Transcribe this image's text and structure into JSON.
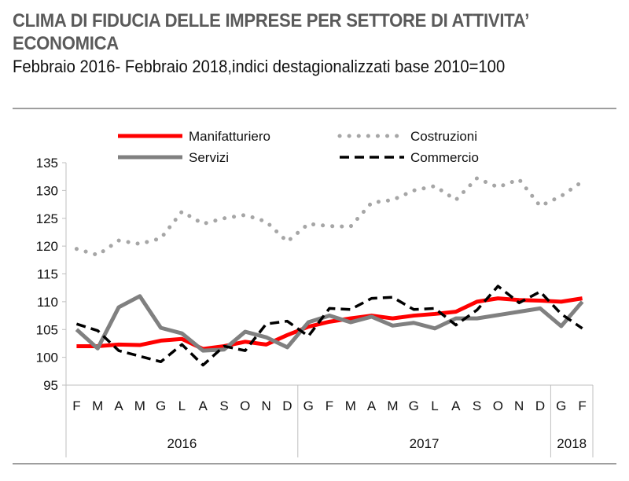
{
  "chart_data": {
    "type": "line",
    "title": "CLIMA DI FIDUCIA DELLE IMPRESE PER SETTORE DI ATTIVITA’ ECONOMICA",
    "subtitle": "Febbraio 2016- Febbraio 2018,indici destagionalizzati base 2010=100",
    "x": [
      "F",
      "M",
      "A",
      "M",
      "G",
      "L",
      "A",
      "S",
      "O",
      "N",
      "D",
      "G",
      "F",
      "M",
      "A",
      "M",
      "G",
      "L",
      "A",
      "S",
      "O",
      "N",
      "D",
      "G",
      "F"
    ],
    "year_groups": [
      {
        "label": "2016",
        "count": 11
      },
      {
        "label": "2017",
        "count": 12
      },
      {
        "label": "2018",
        "count": 2
      }
    ],
    "ylim": [
      95,
      135
    ],
    "yticks": [
      95,
      100,
      105,
      110,
      115,
      120,
      125,
      130,
      135
    ],
    "grid": false,
    "legend": "top",
    "series": [
      {
        "name": "Manifatturiero",
        "color": "#ff0000",
        "style": "solid",
        "values": [
          102,
          102,
          102.3,
          102.2,
          103,
          103.3,
          101.5,
          102,
          102.8,
          102.3,
          104,
          105.5,
          106.4,
          107,
          107.5,
          107,
          107.5,
          107.8,
          108.2,
          110,
          110.6,
          110.3,
          110.2,
          110,
          110.6
        ]
      },
      {
        "name": "Costruzioni",
        "color": "#a6a6a6",
        "style": "dotted",
        "values": [
          119.5,
          118.4,
          121,
          120.4,
          121.4,
          126.2,
          124,
          125,
          125.6,
          124.4,
          120.8,
          124,
          123.6,
          123.5,
          127.8,
          128.3,
          130,
          130.8,
          128.3,
          132.2,
          130.6,
          132,
          127.2,
          129,
          131.6
        ]
      },
      {
        "name": "Servizi",
        "color": "#808080",
        "style": "solid",
        "values": [
          105,
          101.6,
          109,
          111,
          105.3,
          104.3,
          101.2,
          101.4,
          104.6,
          103.6,
          101.8,
          106.3,
          107.5,
          106.3,
          107.3,
          105.7,
          106.2,
          105.2,
          107,
          107,
          107.6,
          108.2,
          108.8,
          105.6,
          110
        ]
      },
      {
        "name": "Commercio",
        "color": "#000000",
        "style": "dashed",
        "values": [
          106,
          104.8,
          101.2,
          100.2,
          99.2,
          102.3,
          98.6,
          102,
          101.2,
          106,
          106.5,
          103.8,
          108.8,
          108.6,
          110.6,
          110.8,
          108.6,
          108.8,
          105.8,
          108.5,
          112.8,
          109.8,
          111.8,
          107.8,
          105.2
        ]
      }
    ]
  }
}
